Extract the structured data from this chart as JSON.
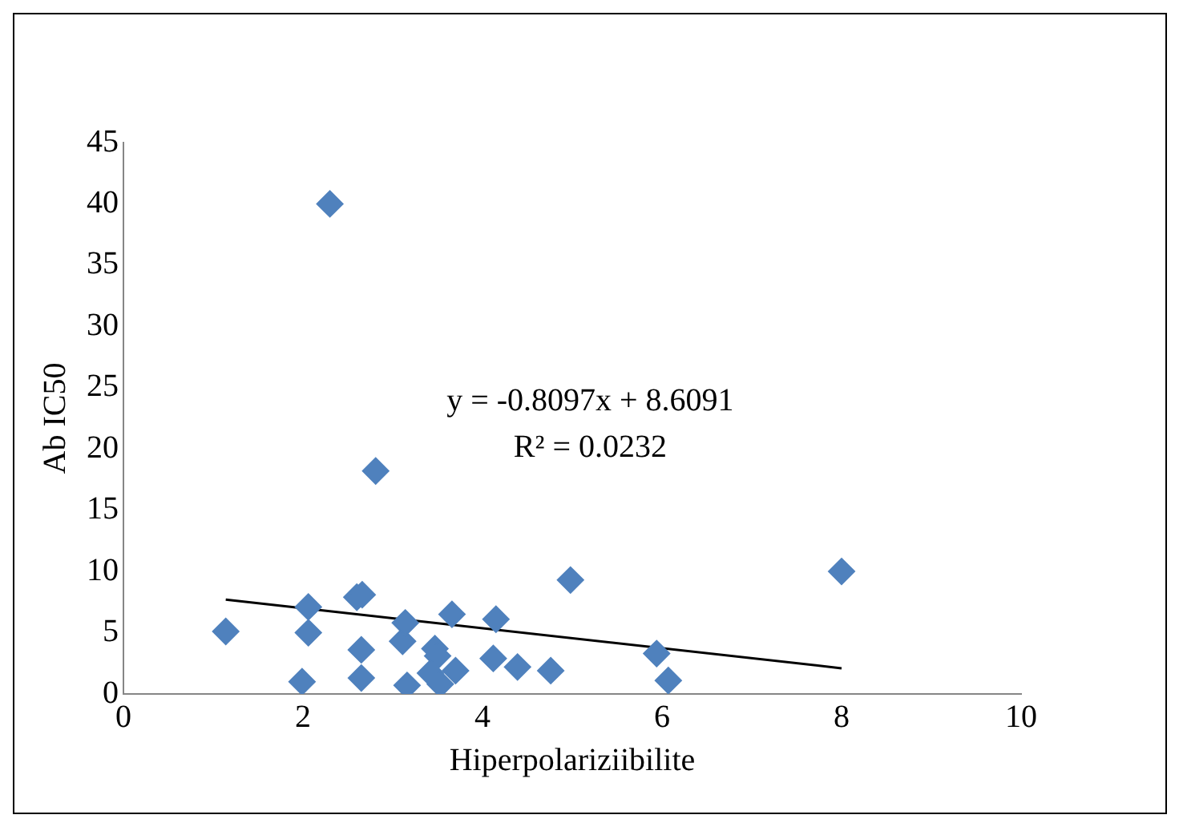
{
  "chart_data": {
    "type": "scatter",
    "xlabel": "Hiperpolariziibilite",
    "ylabel": "Ab IC50",
    "xlim": [
      0,
      10
    ],
    "ylim": [
      0,
      45
    ],
    "xticks": [
      0,
      2,
      4,
      6,
      8,
      10
    ],
    "yticks": [
      0,
      5,
      10,
      15,
      20,
      25,
      30,
      35,
      40,
      45
    ],
    "grid": false,
    "legend": false,
    "annotations": [
      "y = -0.8097x + 8.6091",
      "R² = 0.0232"
    ],
    "series": [
      {
        "marker": "diamond",
        "color": "#4f81bd",
        "x": [
          1.14,
          1.99,
          2.06,
          2.06,
          2.3,
          2.6,
          2.66,
          2.65,
          2.65,
          2.81,
          3.11,
          3.14,
          3.16,
          3.47,
          3.5,
          3.42,
          3.53,
          3.7,
          3.66,
          4.12,
          4.15,
          4.39,
          4.76,
          4.98,
          5.94,
          6.07,
          8.0
        ],
        "values": [
          5.1,
          1.0,
          7.1,
          5.0,
          40,
          7.9,
          8.1,
          3.6,
          1.3,
          18.2,
          4.3,
          5.8,
          0.7,
          3.7,
          3.1,
          1.7,
          0.8,
          1.9,
          6.5,
          2.9,
          6.1,
          2.2,
          1.9,
          9.3,
          3.3,
          1.1,
          10.0
        ]
      },
      {
        "type": "line",
        "marker": "none",
        "color": "#000000",
        "x": [
          1.14,
          8.0
        ],
        "values": [
          7.7,
          2.1
        ]
      }
    ]
  }
}
